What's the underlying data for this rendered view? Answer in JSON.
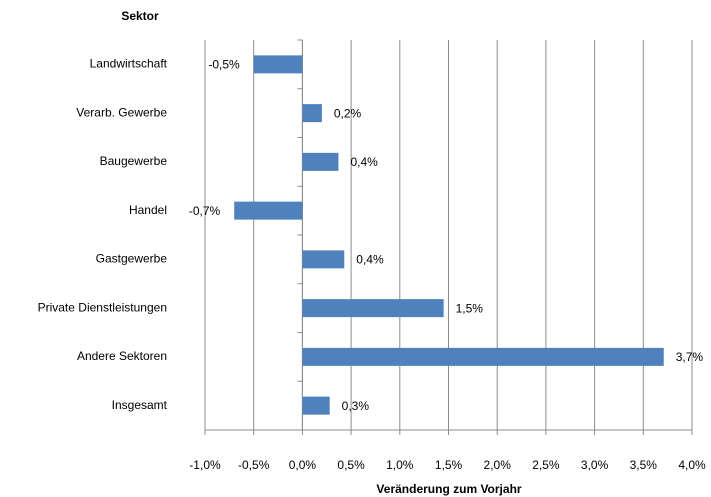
{
  "chart_data": {
    "type": "barh",
    "y_axis_label": "Sektor",
    "x_axis_label": "Veränderung zum Vorjahr",
    "categories": [
      "Landwirtschaft",
      "Verarb. Gewerbe",
      "Baugewerbe",
      "Handel",
      "Gastgewerbe",
      "Private Dienstleistungen",
      "Andere Sektoren",
      "Insgesamt"
    ],
    "values": [
      -0.5,
      0.2,
      0.37,
      -0.7,
      0.43,
      1.45,
      3.71,
      0.28
    ],
    "value_labels": [
      "-0,5%",
      "0,2%",
      "0,4%",
      "-0,7%",
      "0,4%",
      "1,5%",
      "3,7%",
      "0,3%"
    ],
    "color": "#4f81bd",
    "xlim": [
      -1.0,
      4.0
    ],
    "xticks": [
      {
        "value": -1.0,
        "label": "-1,0%"
      },
      {
        "value": -0.5,
        "label": "-0,5%"
      },
      {
        "value": 0,
        "label": "0,0%"
      },
      {
        "value": 0.5,
        "label": "0,5%"
      },
      {
        "value": 1.0,
        "label": "1,0%"
      },
      {
        "value": 1.5,
        "label": "1,5%"
      },
      {
        "value": 2.0,
        "label": "2,0%"
      },
      {
        "value": 2.5,
        "label": "2,5%"
      },
      {
        "value": 3.0,
        "label": "3,0%"
      },
      {
        "value": 3.5,
        "label": "3,5%"
      },
      {
        "value": 4.0,
        "label": "4,0%"
      }
    ],
    "grid": true
  }
}
